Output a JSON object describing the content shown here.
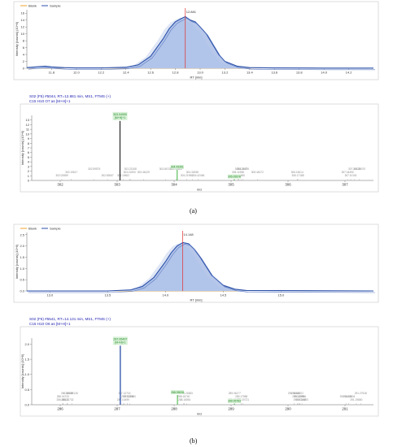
{
  "panels": [
    {
      "label": "(a)",
      "chromatogram": {
        "legend": [
          "Blank",
          "Sample"
        ],
        "peak_label": "12.881",
        "ylabel": "Intensity [counts] (10^6)",
        "xlabel": "RT [min]",
        "xlim": [
          11.6,
          14.4
        ],
        "ylim": [
          0,
          17
        ],
        "y_ticks": [
          0,
          2,
          4,
          6,
          8,
          10,
          12,
          14,
          16
        ],
        "x_ticks": [
          "11.8",
          "12.0",
          "12.2",
          "12.4",
          "12.6",
          "12.8",
          "13.0",
          "13.2",
          "13.4",
          "13.6",
          "13.8",
          "14.0",
          "14.2"
        ]
      },
      "spectrum": {
        "header_line1": "S02 (F5) #5044, RT=12.881 min, MS1, FTMS (+)",
        "header_line2": "C15 H10 O7 as [M+H]+1",
        "ylabel": "Intensity [counts] (10^6)",
        "xlabel": "m/z",
        "xlim": [
          301.5,
          307.5
        ],
        "ylim": [
          0,
          14
        ],
        "y_ticks": [
          0,
          1,
          2,
          3,
          4,
          5,
          6,
          7,
          8,
          9,
          10,
          11,
          12,
          13
        ],
        "x_ticks": [
          "302",
          "303",
          "304",
          "305",
          "306",
          "307"
        ],
        "main_label": "303.04990",
        "main_ion": "[M+H]+1",
        "green_labels": [
          "304.05351",
          "305.05578"
        ],
        "noise_labels": [
          "302.02859",
          "302.19617",
          "302.59575",
          "302.83067",
          "303.21593",
          "303.23158",
          "303.10602",
          "303.46129",
          "303.84728",
          "304.21956",
          "304.31838",
          "304.03802",
          "304.42484",
          "305.11958",
          "305.20755",
          "305.13480",
          "305.46172",
          "305.17447",
          "306.17188",
          "306.16014",
          "307.16478",
          "307.10151",
          "307.04490",
          "307.25070"
        ]
      }
    },
    {
      "label": "(b)",
      "chromatogram": {
        "legend": [
          "Blank",
          "Sample"
        ],
        "peak_label": "14.148",
        "ylabel": "Intensity [counts] (10^6)",
        "xlabel": "RT [min]",
        "xlim": [
          12.8,
          15.8
        ],
        "ylim": [
          0,
          2.6
        ],
        "y_ticks": [
          "0.0",
          "0.5",
          "1.0",
          "1.5",
          "2.0",
          "2.5"
        ],
        "x_ticks": [
          "13.0",
          "13.5",
          "14.0",
          "14.5",
          "15.0"
        ]
      },
      "spectrum": {
        "header_line1": "S02 (F5) #5541, RT=14.131 min, MS1, FTMS (+)",
        "header_line2": "C15 H10 O6 as [M+H]+1",
        "ylabel": "Intensity [counts] (10^6)",
        "xlabel": "m/z",
        "xlim": [
          285.5,
          291.5
        ],
        "ylim": [
          0,
          2.2
        ],
        "y_ticks": [
          "0.0",
          "0.5",
          "1.0",
          "1.5",
          "2.0"
        ],
        "x_ticks": [
          "286",
          "287",
          "288",
          "289",
          "290",
          "291"
        ],
        "main_label": "287.05497",
        "main_ion": "[M+H]+1",
        "green_labels": [
          "288.05836",
          "289.05783"
        ],
        "noise_labels": [
          "286.04321",
          "286.04733",
          "286.11989",
          "286.12732",
          "287.18026",
          "286.20126",
          "287.10499",
          "287.21960",
          "287.12716",
          "288.18054",
          "288.16740",
          "288.21883",
          "289.05802",
          "289.17988",
          "289.06177",
          "289.20721",
          "290.18095",
          "290.10600",
          "290.20198",
          "290.20956",
          "290.16202",
          "290.24493",
          "291.01621",
          "291.27518",
          "291.19860",
          "291.06804"
        ]
      }
    }
  ],
  "chart_data": [
    {
      "type": "area",
      "panel": "(a)",
      "ylabel": "Intensity [counts] (10^6)",
      "xlabel": "RT [min]",
      "xlim": [
        11.6,
        14.4
      ],
      "ylim": [
        0,
        17
      ],
      "grid": false,
      "legend_position": "top-left",
      "series": [
        {
          "name": "Blank",
          "color": "#f0a030",
          "x": [
            11.6,
            14.4
          ],
          "y": [
            0.05,
            0.05
          ]
        },
        {
          "name": "Sample",
          "color": "#2a4fa8",
          "x": [
            11.6,
            11.7,
            11.75,
            11.8,
            11.9,
            12.0,
            12.2,
            12.4,
            12.5,
            12.6,
            12.7,
            12.75,
            12.8,
            12.85,
            12.88,
            12.92,
            12.96,
            13.0,
            13.05,
            13.1,
            13.15,
            13.2,
            13.3,
            13.4,
            13.6,
            14.0,
            14.4
          ],
          "y": [
            0.2,
            0.5,
            0.6,
            0.4,
            0.2,
            0.1,
            0.1,
            0.3,
            1.0,
            3.5,
            8.5,
            11.5,
            13.5,
            14.5,
            15.0,
            14.0,
            13.5,
            12.0,
            10.0,
            7.0,
            4.0,
            2.0,
            0.6,
            0.2,
            0.1,
            0.05,
            0.05
          ]
        }
      ],
      "annotation": {
        "text": "12.881",
        "x": 12.88
      }
    },
    {
      "type": "bar",
      "panel": "(a)",
      "ylabel": "Intensity [counts] (10^6)",
      "xlabel": "m/z",
      "xlim": [
        301.5,
        307.5
      ],
      "ylim": [
        0,
        14
      ],
      "main_peak": {
        "x": 303.0499,
        "y": 12.8,
        "label": "303.04990",
        "ion": "[M+H]+1",
        "color": "#333333"
      },
      "isotope_peaks": [
        {
          "x": 304.05351,
          "y": 2.3,
          "label": "304.05351",
          "color": "#3cb43c"
        },
        {
          "x": 305.05578,
          "y": 0.25,
          "label": "305.05578",
          "color": "#3cb43c"
        }
      ],
      "noise_peaks": [
        {
          "x": 302.02859,
          "y": 0.12
        },
        {
          "x": 302.19617,
          "y": 0.15
        },
        {
          "x": 302.59575,
          "y": 0.1
        },
        {
          "x": 302.83067,
          "y": 0.1
        },
        {
          "x": 303.21593,
          "y": 0.15
        },
        {
          "x": 303.23158,
          "y": 0.1
        },
        {
          "x": 303.10602,
          "y": 0.12
        },
        {
          "x": 303.46129,
          "y": 0.1
        },
        {
          "x": 303.84728,
          "y": 0.1
        },
        {
          "x": 304.21956,
          "y": 0.12
        },
        {
          "x": 304.31838,
          "y": 0.1
        },
        {
          "x": 304.03802,
          "y": 0.1
        },
        {
          "x": 304.42484,
          "y": 0.12
        },
        {
          "x": 305.11958,
          "y": 0.15
        },
        {
          "x": 305.20755,
          "y": 0.1
        },
        {
          "x": 305.1348,
          "y": 0.1
        },
        {
          "x": 305.46172,
          "y": 0.12
        },
        {
          "x": 305.17447,
          "y": 0.1
        },
        {
          "x": 306.17188,
          "y": 0.12
        },
        {
          "x": 306.16014,
          "y": 0.1
        },
        {
          "x": 307.16478,
          "y": 0.1
        },
        {
          "x": 307.10151,
          "y": 0.12
        },
        {
          "x": 307.0449,
          "y": 0.1
        },
        {
          "x": 307.2507,
          "y": 0.1
        }
      ]
    },
    {
      "type": "area",
      "panel": "(b)",
      "ylabel": "Intensity [counts] (10^6)",
      "xlabel": "RT [min]",
      "xlim": [
        12.8,
        15.8
      ],
      "ylim": [
        0,
        2.6
      ],
      "grid": false,
      "legend_position": "top-left",
      "series": [
        {
          "name": "Blank",
          "color": "#f0a030",
          "x": [
            12.8,
            15.8
          ],
          "y": [
            0.0,
            0.0
          ]
        },
        {
          "name": "Sample",
          "color": "#2a4fa8",
          "x": [
            12.8,
            13.5,
            13.7,
            13.8,
            13.9,
            14.0,
            14.05,
            14.1,
            14.15,
            14.2,
            14.25,
            14.3,
            14.35,
            14.4,
            14.5,
            14.6,
            14.7,
            15.8
          ],
          "y": [
            0.0,
            0.0,
            0.05,
            0.2,
            0.6,
            1.3,
            1.7,
            2.0,
            2.15,
            2.1,
            1.85,
            1.5,
            1.1,
            0.7,
            0.25,
            0.08,
            0.02,
            0.0
          ]
        }
      ],
      "annotation": {
        "text": "14.148",
        "x": 14.148
      }
    },
    {
      "type": "bar",
      "panel": "(b)",
      "ylabel": "Intensity [counts] (10^6)",
      "xlabel": "m/z",
      "xlim": [
        285.5,
        291.5
      ],
      "ylim": [
        0,
        2.2
      ],
      "main_peak": {
        "x": 287.05497,
        "y": 1.95,
        "label": "287.05497",
        "ion": "[M+H]+1",
        "color": "#2a4fa8"
      },
      "isotope_peaks": [
        {
          "x": 288.05836,
          "y": 0.32,
          "label": "288.05836",
          "color": "#3cb43c"
        },
        {
          "x": 289.05783,
          "y": 0.03,
          "label": "289.05783",
          "color": "#3cb43c"
        }
      ],
      "noise_peaks": [
        {
          "x": 286.04321,
          "y": 0.02
        },
        {
          "x": 286.04733,
          "y": 0.03
        },
        {
          "x": 286.11989,
          "y": 0.02
        },
        {
          "x": 286.12732,
          "y": 0.02
        },
        {
          "x": 287.18026,
          "y": 0.03
        },
        {
          "x": 286.20126,
          "y": 0.02
        },
        {
          "x": 287.10499,
          "y": 0.02
        },
        {
          "x": 287.2196,
          "y": 0.02
        },
        {
          "x": 287.12716,
          "y": 0.02
        },
        {
          "x": 288.18054,
          "y": 0.03
        },
        {
          "x": 288.1674,
          "y": 0.02
        },
        {
          "x": 288.21883,
          "y": 0.02
        },
        {
          "x": 289.05802,
          "y": 0.02
        },
        {
          "x": 289.17988,
          "y": 0.03
        },
        {
          "x": 289.06177,
          "y": 0.02
        },
        {
          "x": 289.20721,
          "y": 0.02
        },
        {
          "x": 290.18095,
          "y": 0.02
        },
        {
          "x": 290.106,
          "y": 0.03
        },
        {
          "x": 290.20198,
          "y": 0.02
        },
        {
          "x": 290.20956,
          "y": 0.02
        },
        {
          "x": 290.16202,
          "y": 0.02
        },
        {
          "x": 290.24493,
          "y": 0.02
        },
        {
          "x": 291.01621,
          "y": 0.03
        },
        {
          "x": 291.27518,
          "y": 0.02
        },
        {
          "x": 291.1986,
          "y": 0.02
        },
        {
          "x": 291.06804,
          "y": 0.03
        }
      ]
    }
  ]
}
